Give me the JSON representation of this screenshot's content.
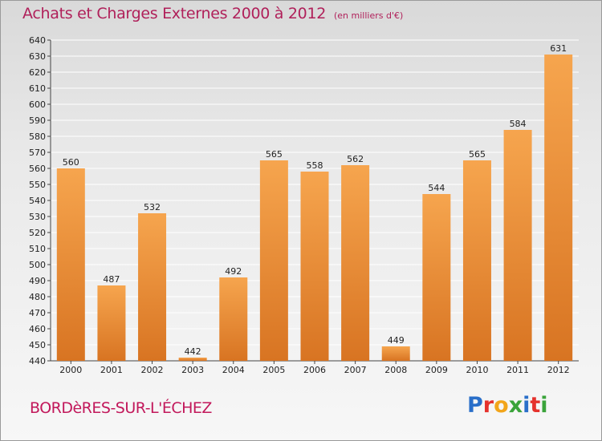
{
  "header": {
    "title": "Achats et Charges Externes 2000 à 2012",
    "subtitle": "(en milliers d'€)"
  },
  "footer": {
    "commune": "BORDèRES-SUR-L'ÉCHEZ",
    "logo": [
      "P",
      "r",
      "o",
      "x",
      "i",
      "t",
      "i"
    ],
    "logo_colors": [
      "#2a6fc9",
      "#e5322d",
      "#f2a51a",
      "#3aa33a",
      "#2a6fc9",
      "#e5322d",
      "#3aa33a"
    ]
  },
  "colors": {
    "bar_light": "#f6a54e",
    "bar_dark": "#d87422",
    "grid": "#ffffff",
    "title": "#b0205a"
  },
  "chart_data": {
    "type": "bar",
    "title": "Achats et Charges Externes 2000 à 2012",
    "subtitle": "(en milliers d'€)",
    "categories": [
      "2000",
      "2001",
      "2002",
      "2003",
      "2004",
      "2005",
      "2006",
      "2007",
      "2008",
      "2009",
      "2010",
      "2011",
      "2012"
    ],
    "values": [
      560,
      487,
      532,
      442,
      492,
      565,
      558,
      562,
      449,
      544,
      565,
      584,
      631
    ],
    "ylim": [
      440,
      640
    ],
    "yticks": [
      440,
      450,
      460,
      470,
      480,
      490,
      500,
      510,
      520,
      530,
      540,
      550,
      560,
      570,
      580,
      590,
      600,
      610,
      620,
      630,
      640
    ],
    "grid": true,
    "legend": "none"
  }
}
